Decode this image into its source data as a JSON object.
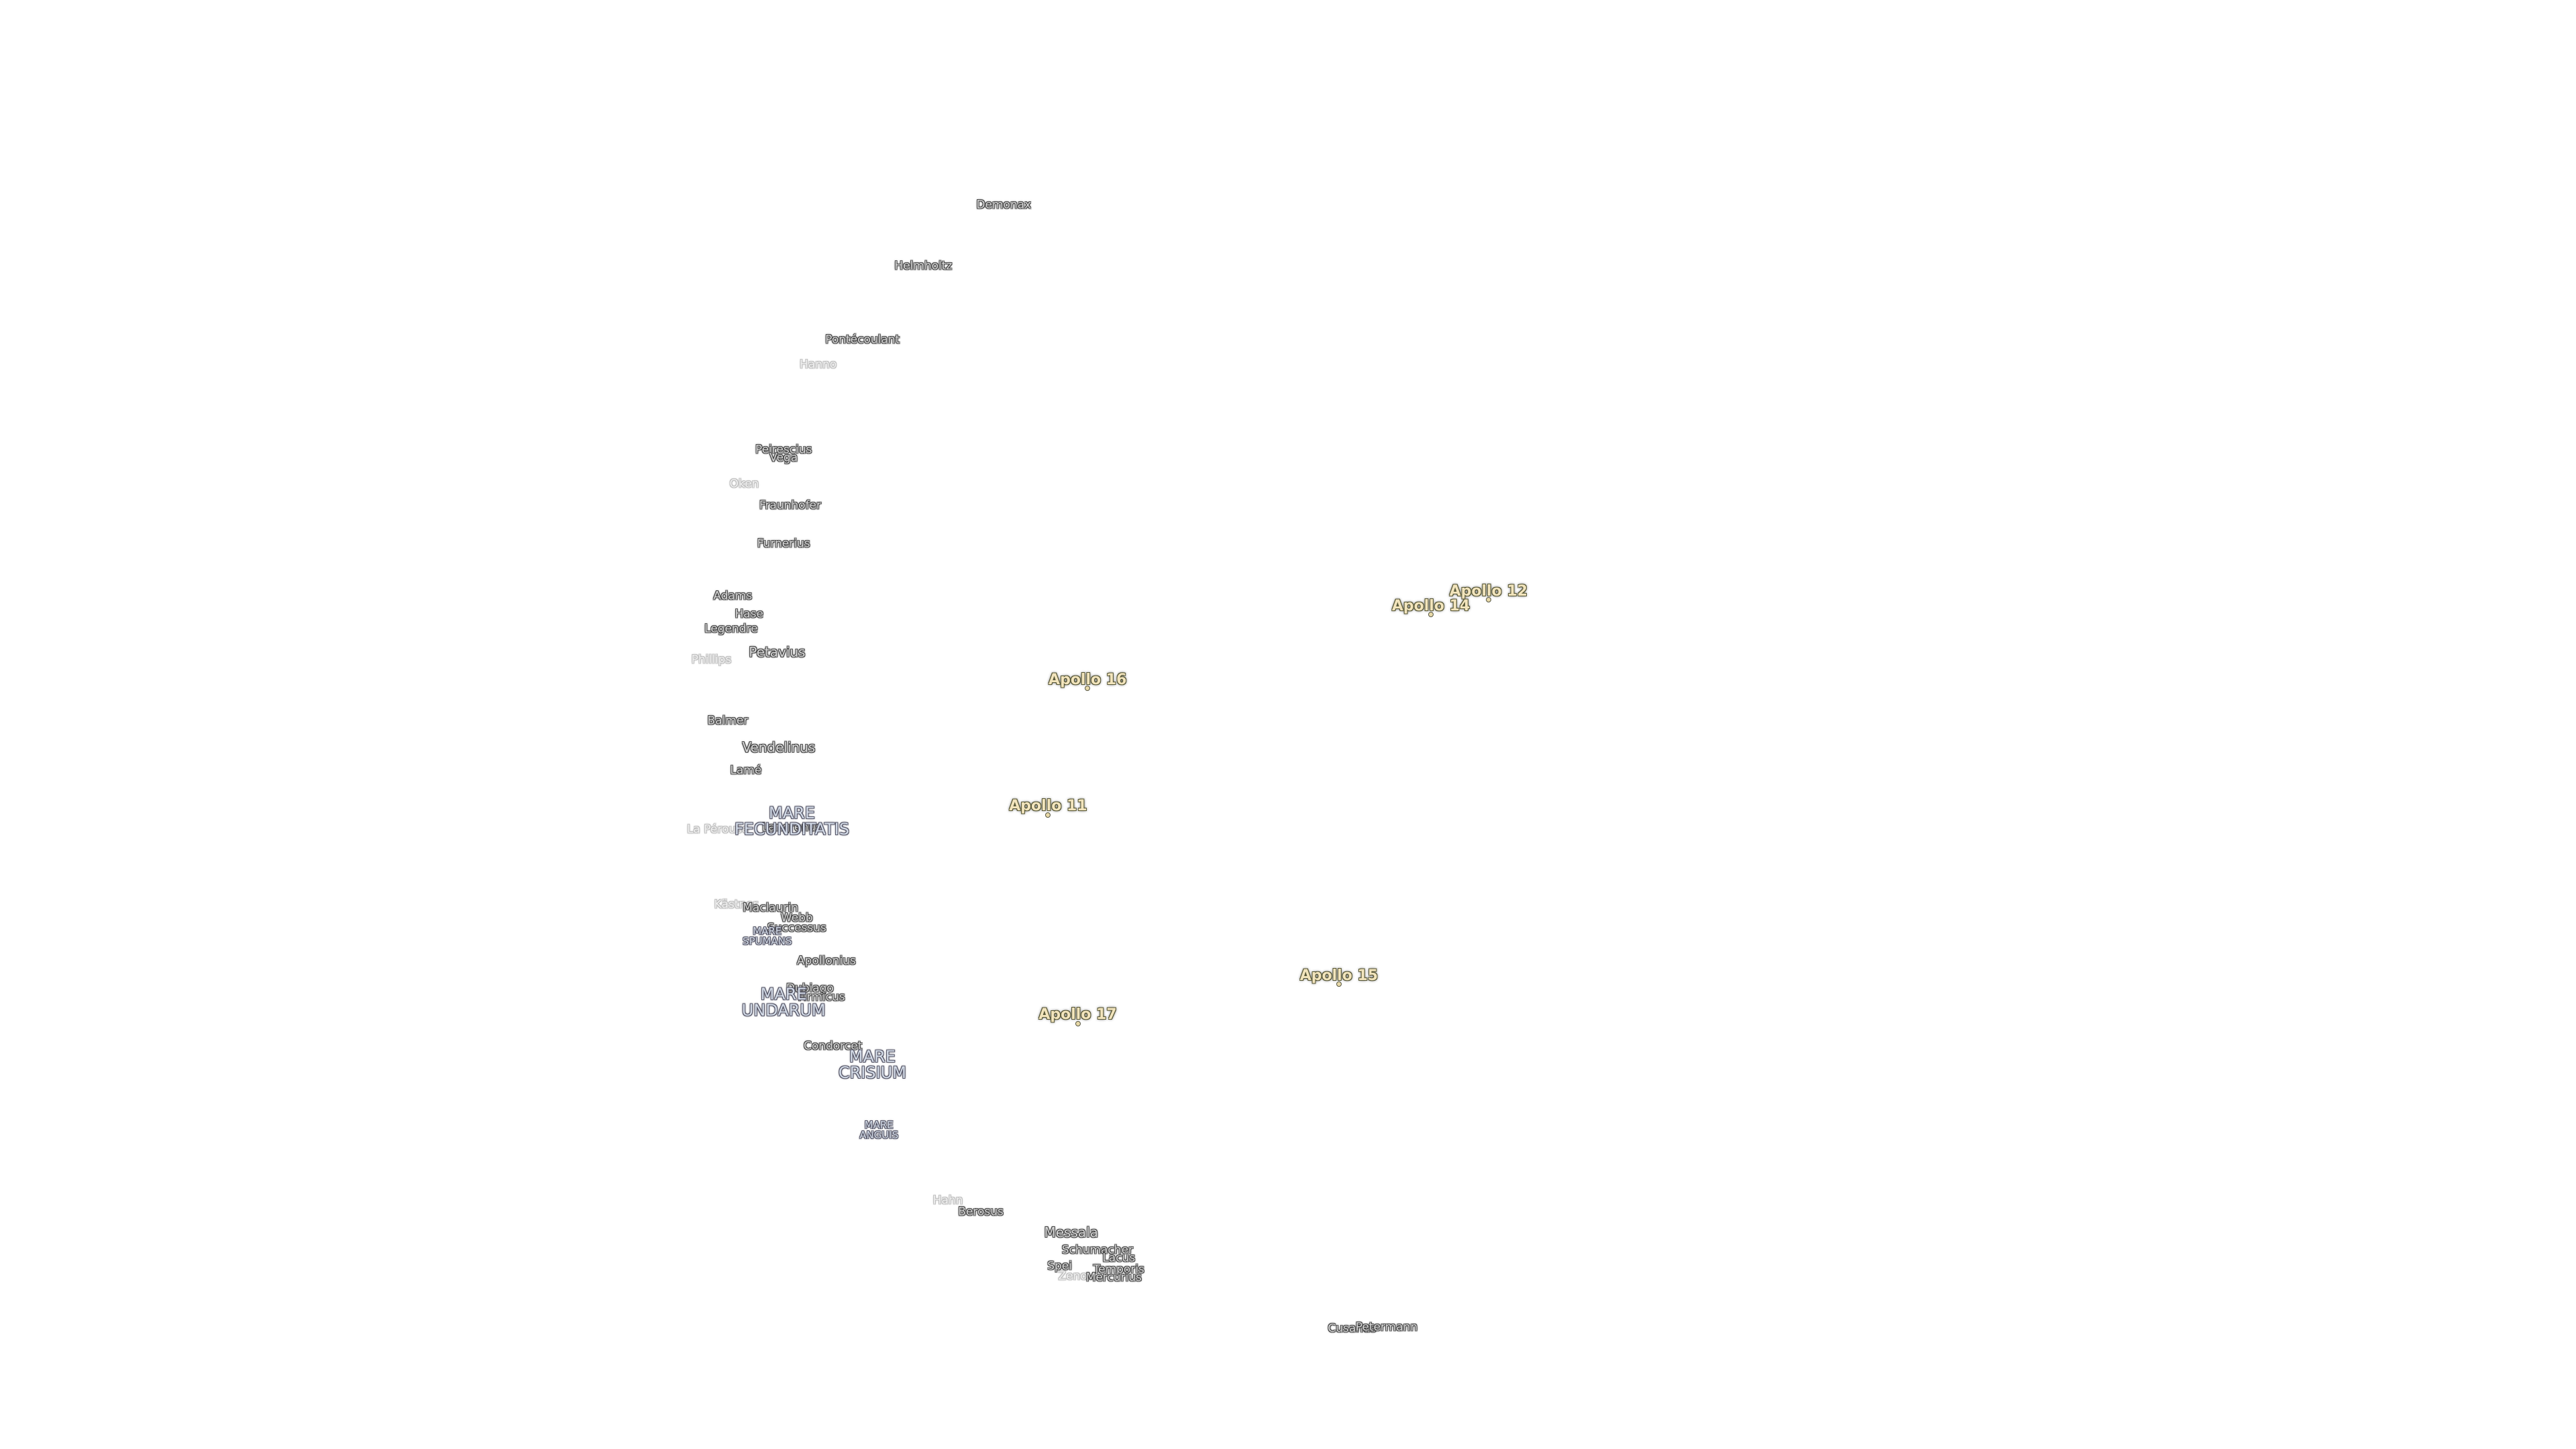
{
  "craters": [
    "Demonax",
    "Helmholtz",
    "Pontécoulant",
    "Hanno",
    "Peirescius",
    "Vega",
    "Oken",
    "Fraunhofer",
    "Furnerius",
    "Adams",
    "Hase",
    "Legendre",
    "Phillips",
    "Petavius",
    "Balmer",
    "Vendelinus",
    "Lamé",
    "Langrenus",
    "La Pérouse",
    "Kästner",
    "Maclaurin",
    "Webb",
    "Successus",
    "Apollonius",
    "Dubiago",
    "Firmicus",
    "Condorcet",
    "Hahn",
    "Berosus",
    "Messala",
    "Schumacher",
    "Lacus",
    "Spei",
    "Temporis",
    "Mercurius",
    "Zeno",
    "Cusanus",
    "Petermann"
  ],
  "maria": [
    "MARE FECUNDITATIS",
    "MARE SPUMANS",
    "MARE UNDARUM",
    "MARE CRISIUM",
    "MARE ANGUIS"
  ],
  "missions": [
    "Apollo 12",
    "Apollo 14",
    "Apollo 16",
    "Apollo 11",
    "Apollo 15",
    "Apollo 17"
  ]
}
